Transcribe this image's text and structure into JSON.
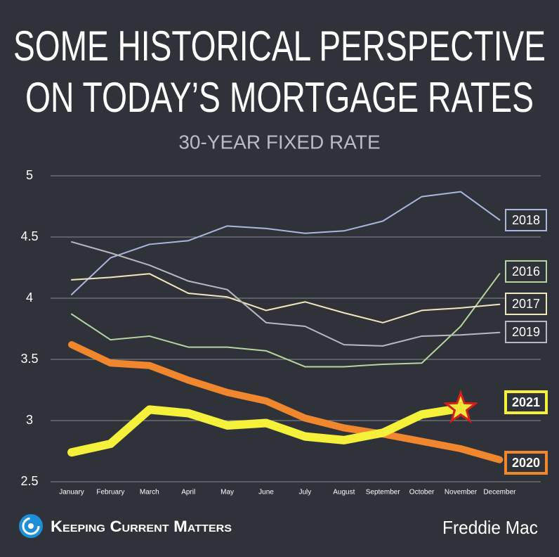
{
  "chart_data": {
    "type": "line",
    "title": [
      "SOME HISTORICAL PERSPECTIVE",
      "ON TODAY’S MORTGAGE RATES"
    ],
    "subtitle": "30-YEAR FIXED RATE",
    "categories": [
      "January",
      "February",
      "March",
      "April",
      "May",
      "June",
      "July",
      "August",
      "September",
      "October",
      "November",
      "December"
    ],
    "ylim": [
      2.5,
      5
    ],
    "yticks": [
      2.5,
      3,
      3.5,
      4,
      4.5,
      5
    ],
    "grid": true,
    "series": [
      {
        "name": "2018",
        "color": "#a9b8e0",
        "values": [
          4.03,
          4.33,
          4.44,
          4.47,
          4.59,
          4.57,
          4.53,
          4.55,
          4.63,
          4.83,
          4.87,
          4.64
        ]
      },
      {
        "name": "2016",
        "color": "#b5d6a3",
        "values": [
          3.87,
          3.66,
          3.69,
          3.6,
          3.6,
          3.57,
          3.44,
          3.44,
          3.46,
          3.47,
          3.77,
          4.2
        ]
      },
      {
        "name": "2017",
        "color": "#f2e6c0",
        "values": [
          4.15,
          4.17,
          4.2,
          4.04,
          4.01,
          3.9,
          3.97,
          3.88,
          3.8,
          3.9,
          3.92,
          3.95
        ]
      },
      {
        "name": "2019",
        "color": "#b7b9bf",
        "values": [
          4.46,
          4.37,
          4.27,
          4.14,
          4.07,
          3.8,
          3.77,
          3.62,
          3.61,
          3.69,
          3.7,
          3.72
        ]
      },
      {
        "name": "2020",
        "color": "#f0862d",
        "values": [
          3.62,
          3.47,
          3.45,
          3.33,
          3.23,
          3.16,
          3.02,
          2.94,
          2.89,
          2.83,
          2.77,
          2.68
        ]
      },
      {
        "name": "2021",
        "color": "#f5f03a",
        "values": [
          2.74,
          2.81,
          3.09,
          3.06,
          2.96,
          2.98,
          2.87,
          2.84,
          2.9,
          3.05,
          3.1,
          null
        ]
      }
    ],
    "brand": "Keeping Current Matters",
    "source": "Freddie Mac"
  }
}
